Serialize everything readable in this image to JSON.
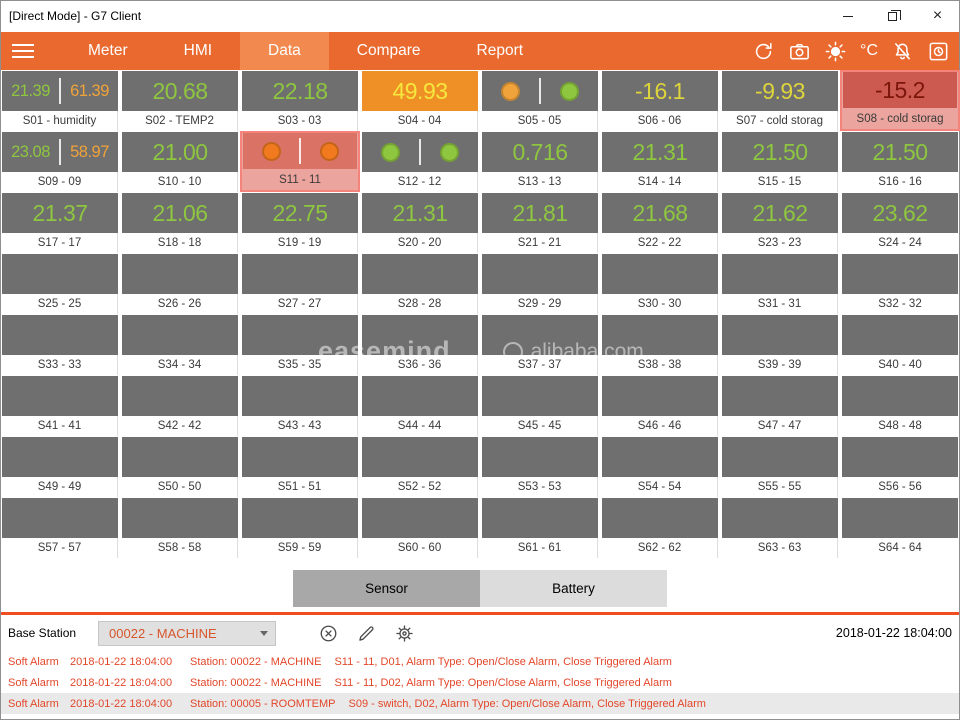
{
  "window": {
    "title": "[Direct Mode] - G7 Client"
  },
  "nav": {
    "tabs": [
      {
        "label": "Meter",
        "active": false
      },
      {
        "label": "HMI",
        "active": false
      },
      {
        "label": "Data",
        "active": true
      },
      {
        "label": "Compare",
        "active": false
      },
      {
        "label": "Report",
        "active": false
      }
    ],
    "temp_unit": "°C",
    "icons": [
      "sync-icon",
      "camera-icon",
      "brightness-icon",
      "temp-unit-toggle",
      "alarm-mute-icon",
      "alarm-record-icon"
    ]
  },
  "colors": {
    "green": "#8ec63f",
    "amber": "#f0a33a",
    "yellow": "#ded43c",
    "alarm_yellow": "#f6e73c",
    "alarm_orange": "#ee9026",
    "dark_red": "#7c150c",
    "red_box": "#cc5a50",
    "pink_box": "#da7265",
    "dot_orange": "#f27a1e",
    "tile_gray": "#6f6f6f",
    "nav_orange": "#e9692f",
    "nav_active": "#f28a50",
    "alarm_text": "#e2472a",
    "divider_red": "#f04e22",
    "station_text": "#d8562c"
  },
  "grid": {
    "tiles": [
      {
        "id": "S01",
        "label": "S01 - humidity",
        "type": "dual",
        "values": [
          {
            "text": "21.39",
            "color": "green"
          },
          {
            "text": "61.39",
            "color": "amber"
          }
        ]
      },
      {
        "id": "S02",
        "label": "S02 - TEMP2",
        "type": "single",
        "value": "20.68",
        "color": "green"
      },
      {
        "id": "S03",
        "label": "S03 - 03",
        "type": "single",
        "value": "22.18",
        "color": "green"
      },
      {
        "id": "S04",
        "label": "S04 - 04",
        "type": "single",
        "value": "49.93",
        "color": "alarm_yellow",
        "box_bg": "alarm_orange"
      },
      {
        "id": "S05",
        "label": "S05 - 05",
        "type": "switch",
        "dots": [
          "amber",
          "green"
        ]
      },
      {
        "id": "S06",
        "label": "S06 - 06",
        "type": "single",
        "value": "-16.1",
        "color": "yellow"
      },
      {
        "id": "S07",
        "label": "S07 - cold storag",
        "type": "single",
        "value": "-9.93",
        "color": "yellow"
      },
      {
        "id": "S08",
        "label": "S08 - cold storag",
        "type": "single",
        "value": "-15.2",
        "color": "dark_red",
        "box_bg": "red_box",
        "alarm": true
      },
      {
        "id": "S09",
        "label": "S09 - 09",
        "type": "dual",
        "values": [
          {
            "text": "23.08",
            "color": "green"
          },
          {
            "text": "58.97",
            "color": "amber"
          }
        ]
      },
      {
        "id": "S10",
        "label": "S10 - 10",
        "type": "single",
        "value": "21.00",
        "color": "green"
      },
      {
        "id": "S11",
        "label": "S11 - 11",
        "type": "switch",
        "dots": [
          "dot_orange",
          "dot_orange"
        ],
        "box_bg": "pink_box",
        "alarm": true
      },
      {
        "id": "S12",
        "label": "S12 - 12",
        "type": "switch",
        "dots": [
          "green",
          "green"
        ]
      },
      {
        "id": "S13",
        "label": "S13 - 13",
        "type": "single",
        "value": "0.716",
        "color": "green"
      },
      {
        "id": "S14",
        "label": "S14 - 14",
        "type": "single",
        "value": "21.31",
        "color": "green"
      },
      {
        "id": "S15",
        "label": "S15 - 15",
        "type": "single",
        "value": "21.50",
        "color": "green"
      },
      {
        "id": "S16",
        "label": "S16 - 16",
        "type": "single",
        "value": "21.50",
        "color": "green"
      },
      {
        "id": "S17",
        "label": "S17 - 17",
        "type": "single",
        "value": "21.37",
        "color": "green"
      },
      {
        "id": "S18",
        "label": "S18 - 18",
        "type": "single",
        "value": "21.06",
        "color": "green"
      },
      {
        "id": "S19",
        "label": "S19 - 19",
        "type": "single",
        "value": "22.75",
        "color": "green"
      },
      {
        "id": "S20",
        "label": "S20 - 20",
        "type": "single",
        "value": "21.31",
        "color": "green"
      },
      {
        "id": "S21",
        "label": "S21 - 21",
        "type": "single",
        "value": "21.81",
        "color": "green"
      },
      {
        "id": "S22",
        "label": "S22 - 22",
        "type": "single",
        "value": "21.68",
        "color": "green"
      },
      {
        "id": "S23",
        "label": "S23 - 23",
        "type": "single",
        "value": "21.62",
        "color": "green"
      },
      {
        "id": "S24",
        "label": "S24 - 24",
        "type": "single",
        "value": "23.62",
        "color": "green"
      },
      {
        "id": "S25",
        "label": "S25 - 25",
        "type": "empty"
      },
      {
        "id": "S26",
        "label": "S26 - 26",
        "type": "empty"
      },
      {
        "id": "S27",
        "label": "S27 - 27",
        "type": "empty"
      },
      {
        "id": "S28",
        "label": "S28 - 28",
        "type": "empty"
      },
      {
        "id": "S29",
        "label": "S29 - 29",
        "type": "empty"
      },
      {
        "id": "S30",
        "label": "S30 - 30",
        "type": "empty"
      },
      {
        "id": "S31",
        "label": "S31 - 31",
        "type": "empty"
      },
      {
        "id": "S32",
        "label": "S32 - 32",
        "type": "empty"
      },
      {
        "id": "S33",
        "label": "S33 - 33",
        "type": "empty"
      },
      {
        "id": "S34",
        "label": "S34 - 34",
        "type": "empty"
      },
      {
        "id": "S35",
        "label": "S35 - 35",
        "type": "empty"
      },
      {
        "id": "S36",
        "label": "S36 - 36",
        "type": "empty"
      },
      {
        "id": "S37",
        "label": "S37 - 37",
        "type": "empty"
      },
      {
        "id": "S38",
        "label": "S38 - 38",
        "type": "empty"
      },
      {
        "id": "S39",
        "label": "S39 - 39",
        "type": "empty"
      },
      {
        "id": "S40",
        "label": "S40 - 40",
        "type": "empty"
      },
      {
        "id": "S41",
        "label": "S41 - 41",
        "type": "empty"
      },
      {
        "id": "S42",
        "label": "S42 - 42",
        "type": "empty"
      },
      {
        "id": "S43",
        "label": "S43 - 43",
        "type": "empty"
      },
      {
        "id": "S44",
        "label": "S44 - 44",
        "type": "empty"
      },
      {
        "id": "S45",
        "label": "S45 - 45",
        "type": "empty"
      },
      {
        "id": "S46",
        "label": "S46 - 46",
        "type": "empty"
      },
      {
        "id": "S47",
        "label": "S47 - 47",
        "type": "empty"
      },
      {
        "id": "S48",
        "label": "S48 - 48",
        "type": "empty"
      },
      {
        "id": "S49",
        "label": "S49 - 49",
        "type": "empty"
      },
      {
        "id": "S50",
        "label": "S50 - 50",
        "type": "empty"
      },
      {
        "id": "S51",
        "label": "S51 - 51",
        "type": "empty"
      },
      {
        "id": "S52",
        "label": "S52 - 52",
        "type": "empty"
      },
      {
        "id": "S53",
        "label": "S53 - 53",
        "type": "empty"
      },
      {
        "id": "S54",
        "label": "S54 - 54",
        "type": "empty"
      },
      {
        "id": "S55",
        "label": "S55 - 55",
        "type": "empty"
      },
      {
        "id": "S56",
        "label": "S56 - 56",
        "type": "empty"
      },
      {
        "id": "S57",
        "label": "S57 - 57",
        "type": "empty"
      },
      {
        "id": "S58",
        "label": "S58 - 58",
        "type": "empty"
      },
      {
        "id": "S59",
        "label": "S59 - 59",
        "type": "empty"
      },
      {
        "id": "S60",
        "label": "S60 - 60",
        "type": "empty"
      },
      {
        "id": "S61",
        "label": "S61 - 61",
        "type": "empty"
      },
      {
        "id": "S62",
        "label": "S62 - 62",
        "type": "empty"
      },
      {
        "id": "S63",
        "label": "S63 - 63",
        "type": "empty"
      },
      {
        "id": "S64",
        "label": "S64 - 64",
        "type": "empty"
      }
    ]
  },
  "toggle": {
    "options": [
      {
        "label": "Sensor",
        "active": true
      },
      {
        "label": "Battery",
        "active": false
      }
    ]
  },
  "station_bar": {
    "label": "Base Station",
    "selected_station": "00022 - MACHINE",
    "timestamp": "2018-01-22 18:04:00"
  },
  "alarms": [
    {
      "type": "Soft Alarm",
      "time": "2018-01-22 18:04:00",
      "station": "Station: 00022 - MACHINE",
      "detail": "S11 - 11, D01, Alarm Type: Open/Close Alarm, Close Triggered Alarm"
    },
    {
      "type": "Soft Alarm",
      "time": "2018-01-22 18:04:00",
      "station": "Station: 00022 - MACHINE",
      "detail": "S11 - 11, D02, Alarm Type: Open/Close Alarm, Close Triggered Alarm"
    },
    {
      "type": "Soft Alarm",
      "time": "2018-01-22 18:04:00",
      "station": "Station: 00005 - ROOMTEMP",
      "detail": "S09 - switch, D02, Alarm Type: Open/Close Alarm, Close Triggered Alarm"
    }
  ],
  "watermark": {
    "brand": "easemind",
    "site": "alibaba.com"
  }
}
